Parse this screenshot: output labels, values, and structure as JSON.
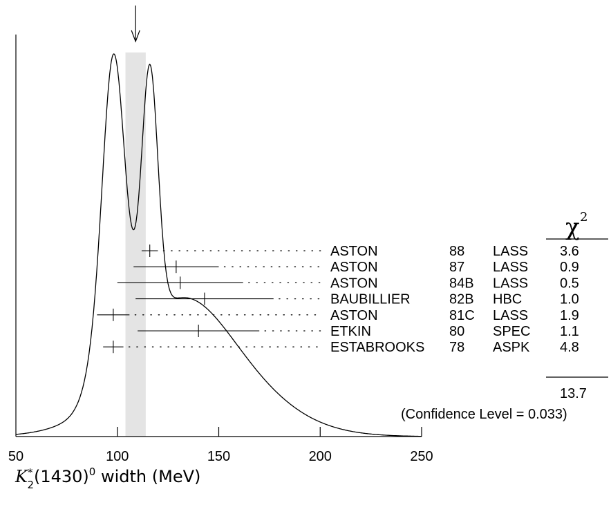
{
  "chart_data": {
    "type": "ideogram",
    "title": "",
    "xlim": [
      50,
      250
    ],
    "x_ticks": [
      "50",
      "100",
      "150",
      "200",
      "250"
    ],
    "xlabel": {
      "symbol": "K",
      "superscript_star": "*",
      "subscript": "2",
      "rest": "(1430)",
      "superscript": "0",
      "tail": " width (MeV)"
    },
    "weighted_average": {
      "value": 109,
      "error": 5
    },
    "measurements": [
      {
        "author": "ASTON",
        "year": "88",
        "experiment": "LASS",
        "value": 116,
        "error": 4,
        "chi2": "3.6"
      },
      {
        "author": "ASTON",
        "year": "87",
        "experiment": "LASS",
        "value": 129,
        "error": 21,
        "chi2": "0.9"
      },
      {
        "author": "ASTON",
        "year": "84B",
        "experiment": "LASS",
        "value": 131,
        "error": 31,
        "chi2": "0.5"
      },
      {
        "author": "BAUBILLIER",
        "year": "82B",
        "experiment": "HBC",
        "value": 143,
        "error": 34,
        "chi2": "1.0"
      },
      {
        "author": "ASTON",
        "year": "81C",
        "experiment": "LASS",
        "value": 98,
        "error": 8,
        "chi2": "1.9"
      },
      {
        "author": "ETKIN",
        "year": "80",
        "experiment": "SPEC",
        "value": 140,
        "error": 30,
        "chi2": "1.1"
      },
      {
        "author": "ESTABROOKS",
        "year": "78",
        "experiment": "ASPK",
        "value": 98,
        "error": 5,
        "chi2": "4.8"
      }
    ],
    "chi2_header": "χ",
    "chi2_header_superscript": "2",
    "chi2_total": "13.7",
    "confidence_level": "(Confidence Level = 0.033)"
  }
}
